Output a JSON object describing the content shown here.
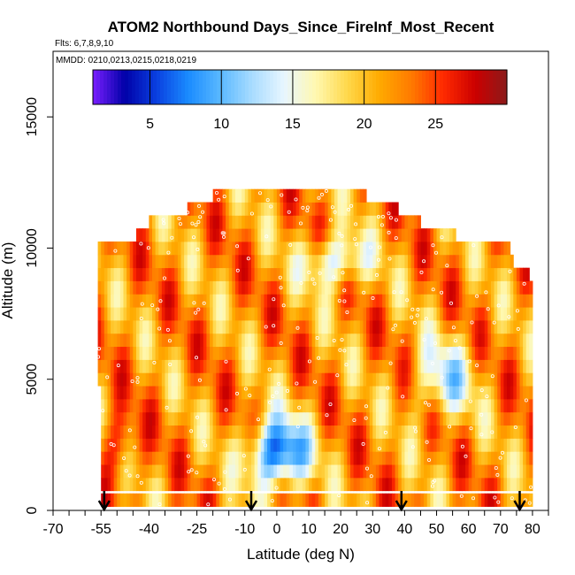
{
  "chart_data": {
    "type": "heatmap",
    "title": "ATOM2 Northbound Days_Since_FireInf_Most_Recent",
    "flights_label": "Flts: 6,7,8,9,10",
    "dates_label": "MMDD: 0210,0213,0215,0218,0219",
    "xlabel": "Latitude (deg N)",
    "ylabel": "Altitude (m)",
    "xlim": [
      -70,
      85
    ],
    "ylim": [
      0,
      17500
    ],
    "x_tick_values": [
      -70,
      -65,
      -60,
      -55,
      -50,
      -45,
      -40,
      -35,
      -30,
      -25,
      -20,
      -15,
      -10,
      -5,
      0,
      5,
      10,
      15,
      20,
      25,
      30,
      35,
      40,
      45,
      50,
      55,
      60,
      65,
      70,
      75,
      80,
      85
    ],
    "x_tick_labels": [
      "-70",
      "-55",
      "-40",
      "-25",
      "-10",
      "0",
      "10",
      "20",
      "30",
      "40",
      "50",
      "60",
      "70",
      "80"
    ],
    "y_tick_values": [
      0,
      5000,
      10000,
      15000
    ],
    "y_tick_labels": [
      "0",
      "5000",
      "10000",
      "15000"
    ],
    "colorbar": {
      "min": 1,
      "max": 30,
      "tick_values": [
        5,
        10,
        15,
        20,
        25
      ],
      "tick_labels": [
        "5",
        "10",
        "15",
        "20",
        "25"
      ],
      "colors": [
        "#7a1fff",
        "#0000a8",
        "#0a40e0",
        "#1a8cff",
        "#5ab8ff",
        "#a8dcff",
        "#e8f6ff",
        "#fff8b0",
        "#ffd84a",
        "#ffaa00",
        "#ff7a00",
        "#ff2a00",
        "#cc0000",
        "#8b1a1a"
      ]
    },
    "flight_direction_markers_lat": [
      -54,
      -8,
      39,
      76
    ],
    "profile_altitudes_m": [
      400,
      1000,
      1500,
      2000,
      2500,
      3000,
      3500,
      4000,
      4500,
      5000,
      5500,
      6000,
      6500,
      7000,
      7500,
      8000,
      8500,
      9000,
      9500,
      10000,
      10500,
      11000,
      11500,
      12000
    ],
    "profile_lat_extent": [
      [
        -55,
        80
      ],
      [
        -55,
        80
      ],
      [
        -55,
        80
      ],
      [
        -55,
        80
      ],
      [
        -55,
        80
      ],
      [
        -55,
        80
      ],
      [
        -55,
        80
      ],
      [
        -55,
        80
      ],
      [
        -55,
        80
      ],
      [
        -56,
        80
      ],
      [
        -56,
        80
      ],
      [
        -56,
        80
      ],
      [
        -56,
        80
      ],
      [
        -56,
        80
      ],
      [
        -56,
        80
      ],
      [
        -56,
        80
      ],
      [
        -56,
        80
      ],
      [
        -56,
        79
      ],
      [
        -56,
        74
      ],
      [
        -56,
        73
      ],
      [
        -44,
        56
      ],
      [
        -40,
        45
      ],
      [
        -28,
        38
      ],
      [
        -20,
        28
      ]
    ],
    "grid": false,
    "legend": "top"
  }
}
